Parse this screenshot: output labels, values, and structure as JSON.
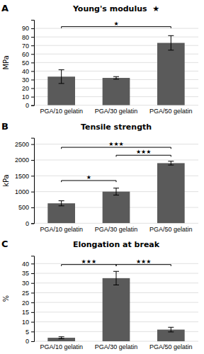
{
  "chart_data": [
    {
      "type": "bar",
      "panel_label": "A",
      "title": "Young's modulus  ★",
      "ylabel": "MPa",
      "categories": [
        "PGA/10 gelatin",
        "PGA/30 gelatin",
        "PGA/50 gelatin"
      ],
      "values": [
        33.5,
        32.0,
        73.0
      ],
      "errors": [
        8.0,
        1.5,
        8.5
      ],
      "color": "#5a5a5a",
      "ylim": [
        0,
        100
      ],
      "yticks": [
        0,
        10,
        20,
        30,
        40,
        50,
        60,
        70,
        80,
        90
      ],
      "grid": true,
      "annotations": [
        {
          "from": "PGA/10 gelatin",
          "to": "PGA/50 gelatin",
          "y": 92,
          "label": "★"
        }
      ]
    },
    {
      "type": "bar",
      "panel_label": "B",
      "title": "Tensile strength",
      "ylabel": "kPa",
      "categories": [
        "PGA/10 gelatin",
        "PGA/30 gelatin",
        "PGA/50 gelatin"
      ],
      "values": [
        630,
        1000,
        1900
      ],
      "errors": [
        80,
        110,
        60
      ],
      "color": "#5a5a5a",
      "ylim": [
        0,
        2700
      ],
      "yticks": [
        0,
        500,
        1000,
        1500,
        2000,
        2500
      ],
      "grid": true,
      "annotations": [
        {
          "from": "PGA/10 gelatin",
          "to": "PGA/30 gelatin",
          "y": 1350,
          "label": "★"
        },
        {
          "from": "PGA/10 gelatin",
          "to": "PGA/50 gelatin",
          "y": 2400,
          "label": "★★★"
        },
        {
          "from": "PGA/30 gelatin",
          "to": "PGA/50 gelatin",
          "y": 2150,
          "label": "★★★"
        }
      ]
    },
    {
      "type": "bar",
      "panel_label": "C",
      "title": "Elongation at break",
      "ylabel": "%",
      "categories": [
        "PGA/10 gelatin",
        "PGA/30 gelatin",
        "PGA/50 gelatin"
      ],
      "values": [
        1.8,
        32.5,
        6.0
      ],
      "errors": [
        0.5,
        3.5,
        1.2
      ],
      "color": "#5a5a5a",
      "ylim": [
        0,
        44
      ],
      "yticks": [
        0,
        5,
        10,
        15,
        20,
        25,
        30,
        35,
        40
      ],
      "grid": true,
      "annotations": [
        {
          "from": "PGA/10 gelatin",
          "to": "PGA/30 gelatin",
          "y": 39.5,
          "label": "★★★"
        },
        {
          "from": "PGA/30 gelatin",
          "to": "PGA/50 gelatin",
          "y": 39.5,
          "label": "★★★"
        }
      ]
    }
  ]
}
